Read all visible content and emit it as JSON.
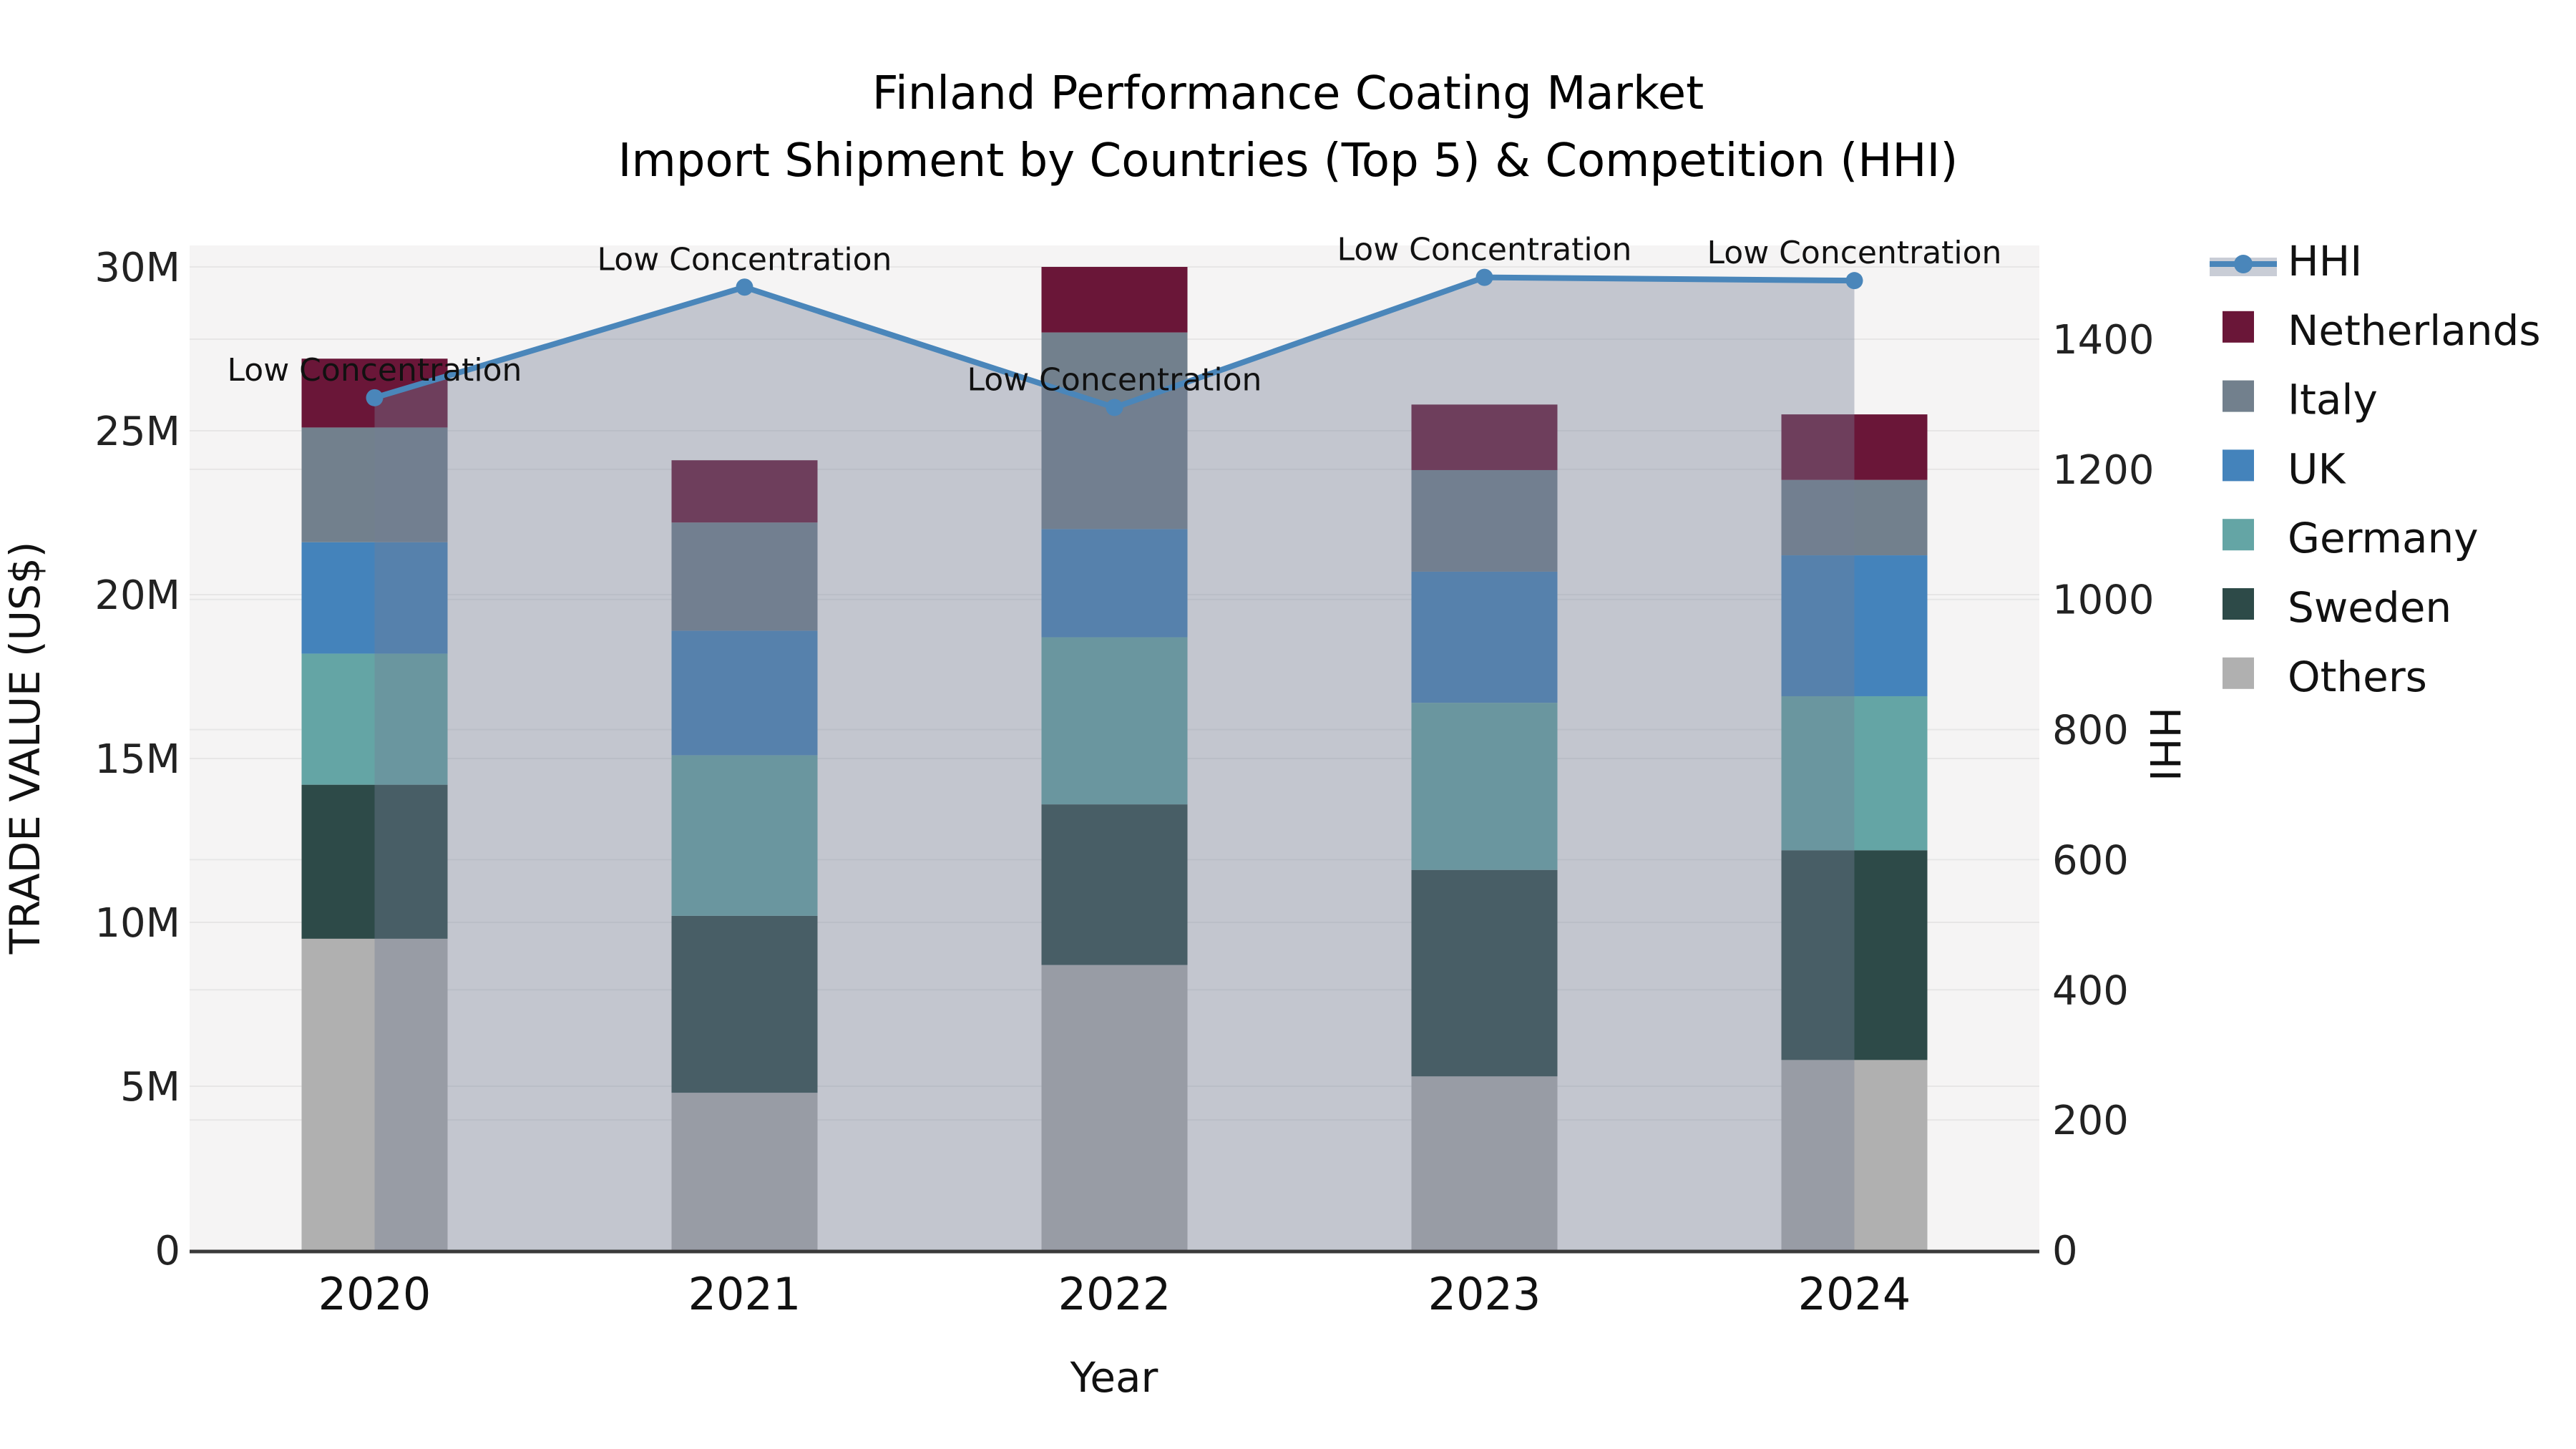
{
  "title": {
    "line1": "Finland Performance Coating Market",
    "line2": "Import Shipment by Countries (Top 5) & Competition (HHI)"
  },
  "chart_data": {
    "type": "stacked-bar+line",
    "categories": [
      "2020",
      "2021",
      "2022",
      "2023",
      "2024"
    ],
    "unit": "M US$",
    "series": [
      {
        "name": "Others",
        "color": "#b0b0b0",
        "values": [
          9.5,
          4.8,
          8.7,
          5.3,
          5.8
        ]
      },
      {
        "name": "Sweden",
        "color": "#2d4a48",
        "values": [
          4.7,
          5.4,
          4.9,
          6.3,
          6.4
        ]
      },
      {
        "name": "Germany",
        "color": "#64a5a5",
        "values": [
          4.0,
          4.9,
          5.1,
          5.1,
          4.7
        ]
      },
      {
        "name": "UK",
        "color": "#4483bb",
        "values": [
          3.4,
          3.8,
          3.3,
          4.0,
          4.3
        ]
      },
      {
        "name": "Italy",
        "color": "#72808d",
        "values": [
          3.5,
          3.3,
          6.0,
          3.1,
          2.3
        ]
      },
      {
        "name": "Netherlands",
        "color": "#6a1638",
        "values": [
          2.1,
          1.9,
          2.0,
          2.0,
          2.0
        ]
      }
    ],
    "bar_totals": [
      27.2,
      24.1,
      30.0,
      25.8,
      25.5
    ],
    "line_series": {
      "name": "HHI",
      "color": "#4a86ba",
      "fill_overlay": "rgba(117,127,150,0.39)",
      "fill_legend_swatch": "#c9cdd6",
      "values": [
        1310,
        1480,
        1295,
        1495,
        1490
      ],
      "annotations": [
        "Low Concentration",
        "Low Concentration",
        "Low Concentration",
        "Low Concentration",
        "Low Concentration"
      ]
    },
    "axes": {
      "left": {
        "title": "TRADE VALUE (US$)",
        "tick_values": [
          0,
          5,
          10,
          15,
          20,
          25,
          30
        ],
        "tick_labels": [
          "0",
          "5M",
          "10M",
          "15M",
          "20M",
          "25M",
          "30M"
        ],
        "range": [
          0,
          30.7
        ]
      },
      "right": {
        "title": "HHI",
        "tick_values": [
          0,
          200,
          400,
          600,
          800,
          1000,
          1200,
          1400
        ],
        "tick_labels": [
          "0",
          "200",
          "400",
          "600",
          "800",
          "1000",
          "1200",
          "1400"
        ],
        "range": [
          0,
          1545
        ]
      },
      "x": {
        "title": "Year"
      }
    },
    "grid": true,
    "legend_position": "right"
  },
  "legend": {
    "items": [
      {
        "label": "HHI",
        "type": "line",
        "color": "#4a86ba"
      },
      {
        "label": "Netherlands",
        "type": "square",
        "color": "#6a1638"
      },
      {
        "label": "Italy",
        "type": "square",
        "color": "#72808d"
      },
      {
        "label": "UK",
        "type": "square",
        "color": "#4483bb"
      },
      {
        "label": "Germany",
        "type": "square",
        "color": "#64a5a5"
      },
      {
        "label": "Sweden",
        "type": "square",
        "color": "#2d4a48"
      },
      {
        "label": "Others",
        "type": "square",
        "color": "#b0b0b0"
      }
    ]
  },
  "colors": {
    "plot_background": "#f5f4f4",
    "gridline": "rgba(0,0,0,0.055)",
    "axis_line": "#3a3a3a",
    "hhi_line": "#4a86ba"
  }
}
